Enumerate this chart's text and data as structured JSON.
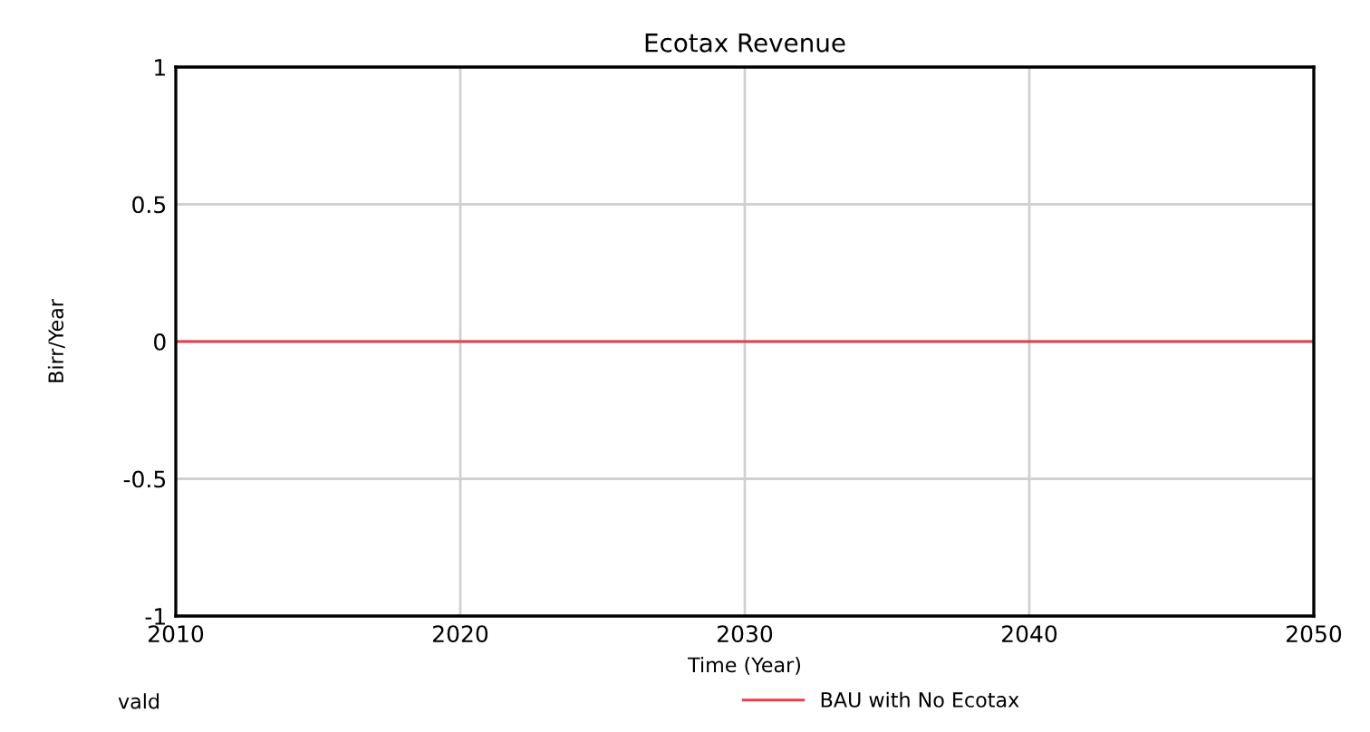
{
  "chart_data": {
    "type": "line",
    "title": "Ecotax Revenue",
    "xlabel": "Time (Year)",
    "ylabel": "Birr/Year",
    "annotations": [
      "vald"
    ],
    "x": [
      2010,
      2050
    ],
    "series": [
      {
        "name": "BAU with No Ecotax",
        "color": "#e8404a",
        "values": [
          0,
          0
        ]
      }
    ],
    "xlim": [
      2010,
      2050
    ],
    "xticks": [
      2010,
      2020,
      2030,
      2040,
      2050
    ],
    "ylim": [
      -1,
      1
    ],
    "yticks": [
      -1,
      -0.5,
      0,
      0.5,
      1
    ],
    "grid": true,
    "legend": "bottom",
    "line_style": "solid",
    "marker": "none"
  }
}
